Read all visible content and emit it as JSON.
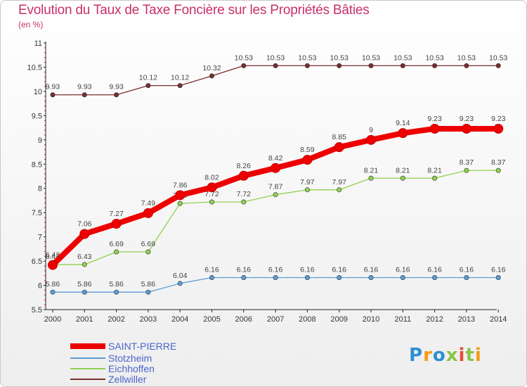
{
  "title": "Evolution du Taux de Taxe Foncière sur les Propriétés Bâties",
  "subtitle": "(en %)",
  "logo": {
    "text": "Proxiti",
    "colors": [
      "#2d8fd4",
      "#f39c12",
      "#2d8fd4",
      "#8bc34a",
      "#e74c3c",
      "#8bc34a",
      "#f39c12"
    ]
  },
  "chart_data": {
    "type": "line",
    "title": "Evolution du Taux de Taxe Foncière sur les Propriétés Bâties",
    "ylabel": "(en %)",
    "xlabel": "",
    "ylim": [
      5.5,
      11
    ],
    "yticks": [
      "5.5",
      "6",
      "6.5",
      "7",
      "7.5",
      "8",
      "8.5",
      "9",
      "9.5",
      "10",
      "10.5",
      "11"
    ],
    "categories": [
      "2000",
      "2001",
      "2002",
      "2003",
      "2004",
      "2005",
      "2006",
      "2007",
      "2008",
      "2009",
      "2010",
      "2011",
      "2012",
      "2013",
      "2014"
    ],
    "series": [
      {
        "name": "Zellwiller",
        "color": "#7a2e2e",
        "labels": [
          "9.93",
          "9.93",
          "9.93",
          "10.12",
          "10.12",
          "10.32",
          "10.53",
          "10.53",
          "10.53",
          "10.53",
          "10.53",
          "10.53",
          "10.53",
          "10.53",
          "10.53"
        ],
        "values": [
          9.93,
          9.93,
          9.93,
          10.12,
          10.12,
          10.32,
          10.53,
          10.53,
          10.53,
          10.53,
          10.53,
          10.53,
          10.53,
          10.53,
          10.53
        ]
      },
      {
        "name": "Stotzheim",
        "color": "#5b9bd5",
        "labels": [
          "5.86",
          "5.86",
          "5.86",
          "5.86",
          "6.04",
          "6.16",
          "6.16",
          "6.16",
          "6.16",
          "6.16",
          "6.16",
          "6.16",
          "6.16",
          "6.16",
          "6.16"
        ],
        "values": [
          5.86,
          5.86,
          5.86,
          5.86,
          6.04,
          6.16,
          6.16,
          6.16,
          6.16,
          6.16,
          6.16,
          6.16,
          6.16,
          6.16,
          6.16
        ]
      },
      {
        "name": "Eichhoffen",
        "color": "#8fd14f",
        "labels": [
          "6.43",
          "6.43",
          "6.69",
          "6.69",
          "7.69",
          "7.72",
          "7.72",
          "7.87",
          "7.97",
          "7.97",
          "8.21",
          "8.21",
          "8.21",
          "8.37",
          "8.37"
        ],
        "values": [
          6.43,
          6.43,
          6.69,
          6.69,
          7.69,
          7.72,
          7.72,
          7.87,
          7.97,
          7.97,
          8.21,
          8.21,
          8.21,
          8.37,
          8.37
        ]
      },
      {
        "name": "SAINT-PIERRE",
        "color": "#ee0000",
        "labels": [
          "6.42",
          "7.06",
          "7.27",
          "7.49",
          "7.86",
          "8.02",
          "8.26",
          "8.42",
          "8.59",
          "8.85",
          "9",
          "9.14",
          "9.23",
          "9.23",
          "9.23"
        ],
        "values": [
          6.42,
          7.06,
          7.27,
          7.49,
          7.86,
          8.02,
          8.26,
          8.42,
          8.59,
          8.85,
          9.0,
          9.14,
          9.23,
          9.23,
          9.23
        ]
      }
    ],
    "legend": [
      {
        "name": "SAINT-PIERRE",
        "color": "#ee0000"
      },
      {
        "name": "Stotzheim",
        "color": "#5b9bd5"
      },
      {
        "name": "Eichhoffen",
        "color": "#8fd14f"
      },
      {
        "name": "Zellwiller",
        "color": "#7a2e2e"
      }
    ]
  }
}
